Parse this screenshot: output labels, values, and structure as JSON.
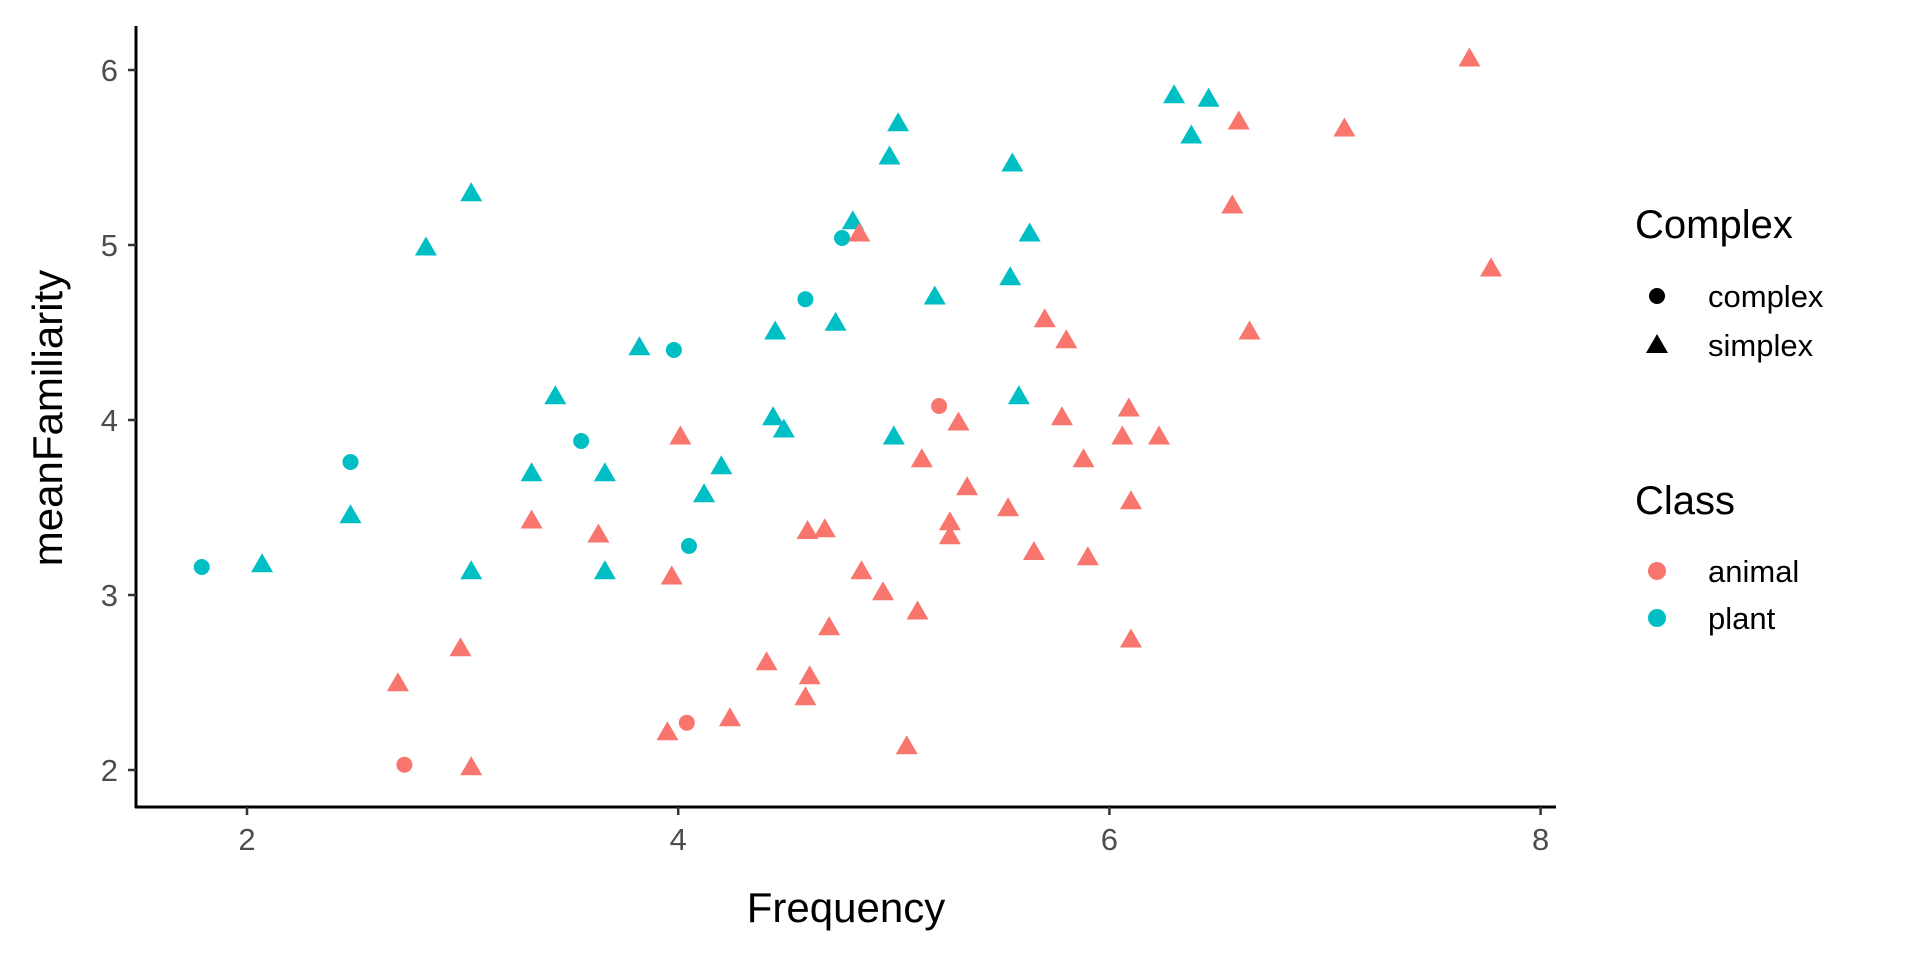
{
  "chart_data": {
    "type": "scatter",
    "xlabel": "Frequency",
    "ylabel": "meanFamiliarity",
    "xlim": [
      1.5,
      8.05
    ],
    "ylim": [
      1.8,
      6.25
    ],
    "xticks": [
      2,
      4,
      6,
      8
    ],
    "yticks": [
      2,
      3,
      4,
      5,
      6
    ],
    "grid": false,
    "legend_placement": "right",
    "legends": [
      {
        "title": "Complex",
        "kind": "shape",
        "entries": [
          {
            "label": "complex",
            "shape": "circle"
          },
          {
            "label": "simplex",
            "shape": "triangle"
          }
        ]
      },
      {
        "title": "Class",
        "kind": "color",
        "entries": [
          {
            "label": "animal",
            "color": "#F8766D"
          },
          {
            "label": "plant",
            "color": "#00BFC4"
          }
        ]
      }
    ],
    "series": [
      {
        "class": "plant",
        "complex": "complex",
        "points": [
          [
            1.79,
            3.16
          ],
          [
            2.48,
            3.76
          ],
          [
            3.55,
            3.88
          ],
          [
            3.98,
            4.4
          ],
          [
            4.05,
            3.28
          ],
          [
            4.59,
            4.69
          ],
          [
            4.76,
            5.04
          ]
        ]
      },
      {
        "class": "animal",
        "complex": "complex",
        "points": [
          [
            2.73,
            2.03
          ],
          [
            4.04,
            2.27
          ],
          [
            5.21,
            4.08
          ]
        ]
      },
      {
        "class": "plant",
        "complex": "simplex",
        "points": [
          [
            2.07,
            3.17
          ],
          [
            2.48,
            3.45
          ],
          [
            2.83,
            4.98
          ],
          [
            3.04,
            5.29
          ],
          [
            3.04,
            3.13
          ],
          [
            3.32,
            3.69
          ],
          [
            3.43,
            4.13
          ],
          [
            3.66,
            3.69
          ],
          [
            3.66,
            3.13
          ],
          [
            3.82,
            4.41
          ],
          [
            4.12,
            3.57
          ],
          [
            4.2,
            3.73
          ],
          [
            4.44,
            4.01
          ],
          [
            4.49,
            3.94
          ],
          [
            4.45,
            4.5
          ],
          [
            4.73,
            4.55
          ],
          [
            4.81,
            5.13
          ],
          [
            4.98,
            5.5
          ],
          [
            5.02,
            5.69
          ],
          [
            5.0,
            3.9
          ],
          [
            5.19,
            4.7
          ],
          [
            5.54,
            4.81
          ],
          [
            5.55,
            5.46
          ],
          [
            5.58,
            4.13
          ],
          [
            5.63,
            5.06
          ],
          [
            6.3,
            5.85
          ],
          [
            6.38,
            5.62
          ],
          [
            6.46,
            5.83
          ]
        ]
      },
      {
        "class": "animal",
        "complex": "simplex",
        "points": [
          [
            7.67,
            6.06
          ],
          [
            7.09,
            5.66
          ],
          [
            6.6,
            5.7
          ],
          [
            6.57,
            5.22
          ],
          [
            7.77,
            4.86
          ],
          [
            6.65,
            4.5
          ],
          [
            4.84,
            5.06
          ],
          [
            5.7,
            4.57
          ],
          [
            5.8,
            4.45
          ],
          [
            5.78,
            4.01
          ],
          [
            6.09,
            4.06
          ],
          [
            6.06,
            3.9
          ],
          [
            6.23,
            3.9
          ],
          [
            5.88,
            3.77
          ],
          [
            6.1,
            3.53
          ],
          [
            5.9,
            3.21
          ],
          [
            6.1,
            2.74
          ],
          [
            5.65,
            3.24
          ],
          [
            5.53,
            3.49
          ],
          [
            5.34,
            3.61
          ],
          [
            5.3,
            3.98
          ],
          [
            5.13,
            3.77
          ],
          [
            5.26,
            3.41
          ],
          [
            5.26,
            3.33
          ],
          [
            5.11,
            2.9
          ],
          [
            5.06,
            2.13
          ],
          [
            4.95,
            3.01
          ],
          [
            4.85,
            3.13
          ],
          [
            4.7,
            2.81
          ],
          [
            4.68,
            3.37
          ],
          [
            4.6,
            3.36
          ],
          [
            4.61,
            2.53
          ],
          [
            4.59,
            2.41
          ],
          [
            4.41,
            2.61
          ],
          [
            4.24,
            2.29
          ],
          [
            4.01,
            3.9
          ],
          [
            3.97,
            3.1
          ],
          [
            3.95,
            2.21
          ],
          [
            3.63,
            3.34
          ],
          [
            3.32,
            3.42
          ],
          [
            2.99,
            2.69
          ],
          [
            3.04,
            2.01
          ],
          [
            2.7,
            2.49
          ]
        ]
      }
    ]
  }
}
